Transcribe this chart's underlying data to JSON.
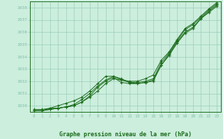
{
  "title": "Graphe pression niveau de la mer (hPa)",
  "xlabel_hours": [
    0,
    1,
    2,
    3,
    4,
    5,
    6,
    7,
    8,
    9,
    10,
    11,
    12,
    13,
    14,
    15,
    16,
    17,
    18,
    19,
    20,
    21,
    22,
    23
  ],
  "line1": [
    1029.6,
    1029.6,
    1029.7,
    1029.8,
    1029.9,
    1030.0,
    1030.3,
    1030.7,
    1031.2,
    1031.8,
    1032.2,
    1032.1,
    1031.9,
    1031.8,
    1031.9,
    1032.0,
    1033.3,
    1034.1,
    1035.1,
    1035.9,
    1036.3,
    1037.1,
    1037.6,
    1038.1
  ],
  "line2": [
    1029.6,
    1029.6,
    1029.8,
    1029.8,
    1029.9,
    1030.0,
    1030.3,
    1030.8,
    1031.5,
    1032.0,
    1032.3,
    1031.9,
    1031.8,
    1031.8,
    1031.9,
    1032.1,
    1033.3,
    1034.2,
    1035.2,
    1036.0,
    1036.4,
    1037.1,
    1037.7,
    1038.2
  ],
  "line3": [
    1029.6,
    1029.6,
    1029.7,
    1029.8,
    1029.9,
    1030.1,
    1030.5,
    1031.0,
    1031.6,
    1032.1,
    1032.4,
    1032.2,
    1031.9,
    1031.9,
    1032.0,
    1032.2,
    1033.5,
    1034.3,
    1035.3,
    1036.2,
    1036.6,
    1037.2,
    1037.8,
    1038.3
  ],
  "line4": [
    1029.7,
    1029.7,
    1029.8,
    1030.0,
    1030.2,
    1030.4,
    1030.7,
    1031.2,
    1031.8,
    1032.4,
    1032.4,
    1032.1,
    1032.0,
    1032.0,
    1032.2,
    1032.5,
    1033.7,
    1034.4,
    1035.4,
    1036.3,
    1036.7,
    1037.3,
    1037.9,
    1038.4
  ],
  "ylim": [
    1029.5,
    1038.5
  ],
  "yticks": [
    1030,
    1031,
    1032,
    1033,
    1034,
    1035,
    1036,
    1037,
    1038
  ],
  "line_color": "#1a6b1a",
  "bg_color": "#cceedd",
  "grid_color": "#99ccbb",
  "text_color": "#1a6b1a",
  "marker": "+"
}
